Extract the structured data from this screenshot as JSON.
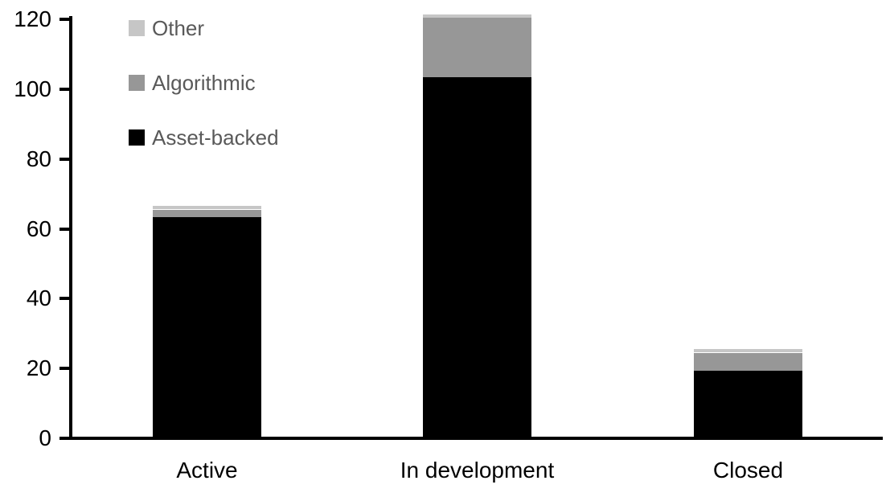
{
  "chart_data": {
    "type": "bar",
    "stacked": true,
    "title": "",
    "categories": [
      "Active",
      "In development",
      "Closed"
    ],
    "series": [
      {
        "name": "Asset-backed",
        "color": "#000000",
        "values": [
          63,
          103,
          19
        ]
      },
      {
        "name": "Algorithmic",
        "color": "#979797",
        "values": [
          2,
          17,
          5
        ]
      },
      {
        "name": "Other",
        "color": "#c6c6c6",
        "values": [
          1,
          1,
          1
        ]
      }
    ],
    "stack_order_bottom_to_top": [
      "Asset-backed",
      "Algorithmic",
      "Other"
    ],
    "legend": {
      "position": "top-left-inside",
      "order": [
        "Other",
        "Algorithmic",
        "Asset-backed"
      ],
      "text_color": "#595959"
    },
    "xlabel": "",
    "ylabel": "",
    "ylim": [
      0,
      120
    ],
    "yticks": [
      0,
      20,
      40,
      60,
      80,
      100,
      120
    ],
    "grid": false,
    "axis_color": "#000000",
    "background_color": "#ffffff"
  }
}
